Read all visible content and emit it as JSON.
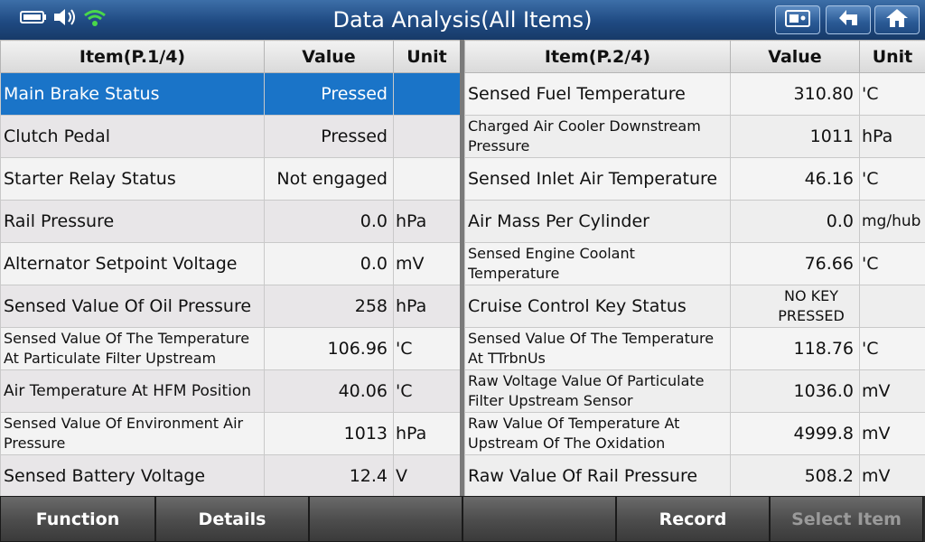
{
  "header": {
    "title": "Data Analysis(All Items)",
    "status_icons": [
      "battery-icon",
      "speaker-icon",
      "wifi-icon"
    ],
    "buttons": [
      "screenshot-icon",
      "back-icon",
      "home-icon"
    ]
  },
  "left_table": {
    "headers": {
      "item": "Item(P.1/4)",
      "value": "Value",
      "unit": "Unit"
    },
    "rows": [
      {
        "item": "Main Brake Status",
        "value": "Pressed",
        "unit": ""
      },
      {
        "item": "Clutch Pedal",
        "value": "Pressed",
        "unit": ""
      },
      {
        "item": "Starter Relay Status",
        "value": "Not engaged",
        "unit": ""
      },
      {
        "item": "Rail Pressure",
        "value": "0.0",
        "unit": "hPa"
      },
      {
        "item": "Alternator Setpoint Voltage",
        "value": "0.0",
        "unit": "mV"
      },
      {
        "item": "Sensed Value Of Oil Pressure",
        "value": "258",
        "unit": "hPa"
      },
      {
        "item": "Sensed Value Of The Temperature At Particulate Filter Upstream",
        "value": "106.96",
        "unit": "'C"
      },
      {
        "item": "Air Temperature At HFM Position",
        "value": "40.06",
        "unit": "'C"
      },
      {
        "item": "Sensed Value Of Environment Air Pressure",
        "value": "1013",
        "unit": "hPa"
      },
      {
        "item": "Sensed Battery Voltage",
        "value": "12.4",
        "unit": "V"
      }
    ]
  },
  "right_table": {
    "headers": {
      "item": "Item(P.2/4)",
      "value": "Value",
      "unit": "Unit"
    },
    "rows": [
      {
        "item": "Sensed Fuel Temperature",
        "value": "310.80",
        "unit": "'C"
      },
      {
        "item": "Charged Air Cooler Downstream Pressure",
        "value": "1011",
        "unit": "hPa"
      },
      {
        "item": "Sensed Inlet Air Temperature",
        "value": "46.16",
        "unit": "'C"
      },
      {
        "item": "Air Mass Per Cylinder",
        "value": "0.0",
        "unit": "mg/hub"
      },
      {
        "item": "Sensed Engine Coolant Temperature",
        "value": "76.66",
        "unit": "'C"
      },
      {
        "item": "Cruise Control Key Status",
        "value": "NO KEY PRESSED",
        "unit": ""
      },
      {
        "item": "Sensed Value Of The Temperature At TTrbnUs",
        "value": "118.76",
        "unit": "'C"
      },
      {
        "item": "Raw Voltage Value Of Particulate Filter Upstream Sensor",
        "value": "1036.0",
        "unit": "mV"
      },
      {
        "item": "Raw Value Of Temperature At Upstream Of The Oxidation",
        "value": "4999.8",
        "unit": "mV"
      },
      {
        "item": "Raw Value Of Rail Pressure",
        "value": "508.2",
        "unit": "mV"
      }
    ]
  },
  "toolbar": {
    "function_label": "Function",
    "details_label": "Details",
    "empty1_label": "",
    "empty2_label": "",
    "record_label": "Record",
    "select_item_label": "Select Item"
  }
}
